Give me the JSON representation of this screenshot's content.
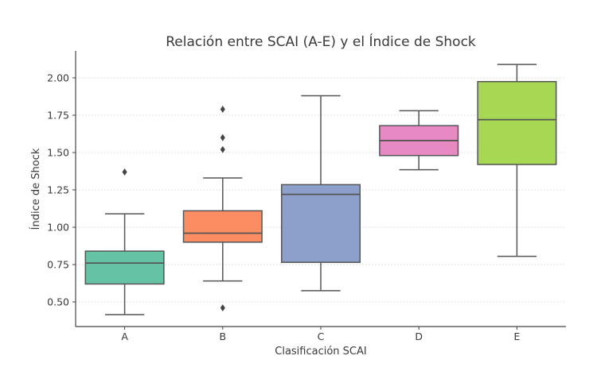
{
  "chart_data": {
    "type": "boxplot",
    "title": "Relación entre SCAI (A-E) y el Índice de Shock",
    "xlabel": "Clasificación SCAI",
    "ylabel": "Índice de Shock",
    "categories": [
      "A",
      "B",
      "C",
      "D",
      "E"
    ],
    "ylim": [
      0.33,
      2.2
    ],
    "yticks": [
      0.5,
      0.75,
      1.0,
      1.25,
      1.5,
      1.75,
      2.0
    ],
    "ytick_labels": [
      "0.50",
      "0.75",
      "1.00",
      "1.25",
      "1.50",
      "1.75",
      "2.00"
    ],
    "grid": {
      "axis": "y",
      "style": "dashed"
    },
    "legend": null,
    "series": [
      {
        "name": "A",
        "color": "#66c2a5",
        "whisker_low": 0.415,
        "q1": 0.62,
        "median": 0.76,
        "q3": 0.84,
        "whisker_high": 1.09,
        "outliers": [
          1.37
        ]
      },
      {
        "name": "B",
        "color": "#fc8d62",
        "whisker_low": 0.64,
        "q1": 0.9,
        "median": 0.96,
        "q3": 1.11,
        "whisker_high": 1.33,
        "outliers": [
          1.79,
          1.6,
          1.52,
          0.46
        ]
      },
      {
        "name": "C",
        "color": "#8da0cb",
        "whisker_low": 0.575,
        "q1": 0.765,
        "median": 1.22,
        "q3": 1.285,
        "whisker_high": 1.88,
        "outliers": []
      },
      {
        "name": "D",
        "color": "#e78ac3",
        "whisker_low": 1.385,
        "q1": 1.48,
        "median": 1.58,
        "q3": 1.68,
        "whisker_high": 1.78,
        "outliers": []
      },
      {
        "name": "E",
        "color": "#a6d854",
        "whisker_low": 0.805,
        "q1": 1.42,
        "median": 1.72,
        "q3": 1.975,
        "whisker_high": 2.09,
        "outliers": []
      }
    ]
  }
}
